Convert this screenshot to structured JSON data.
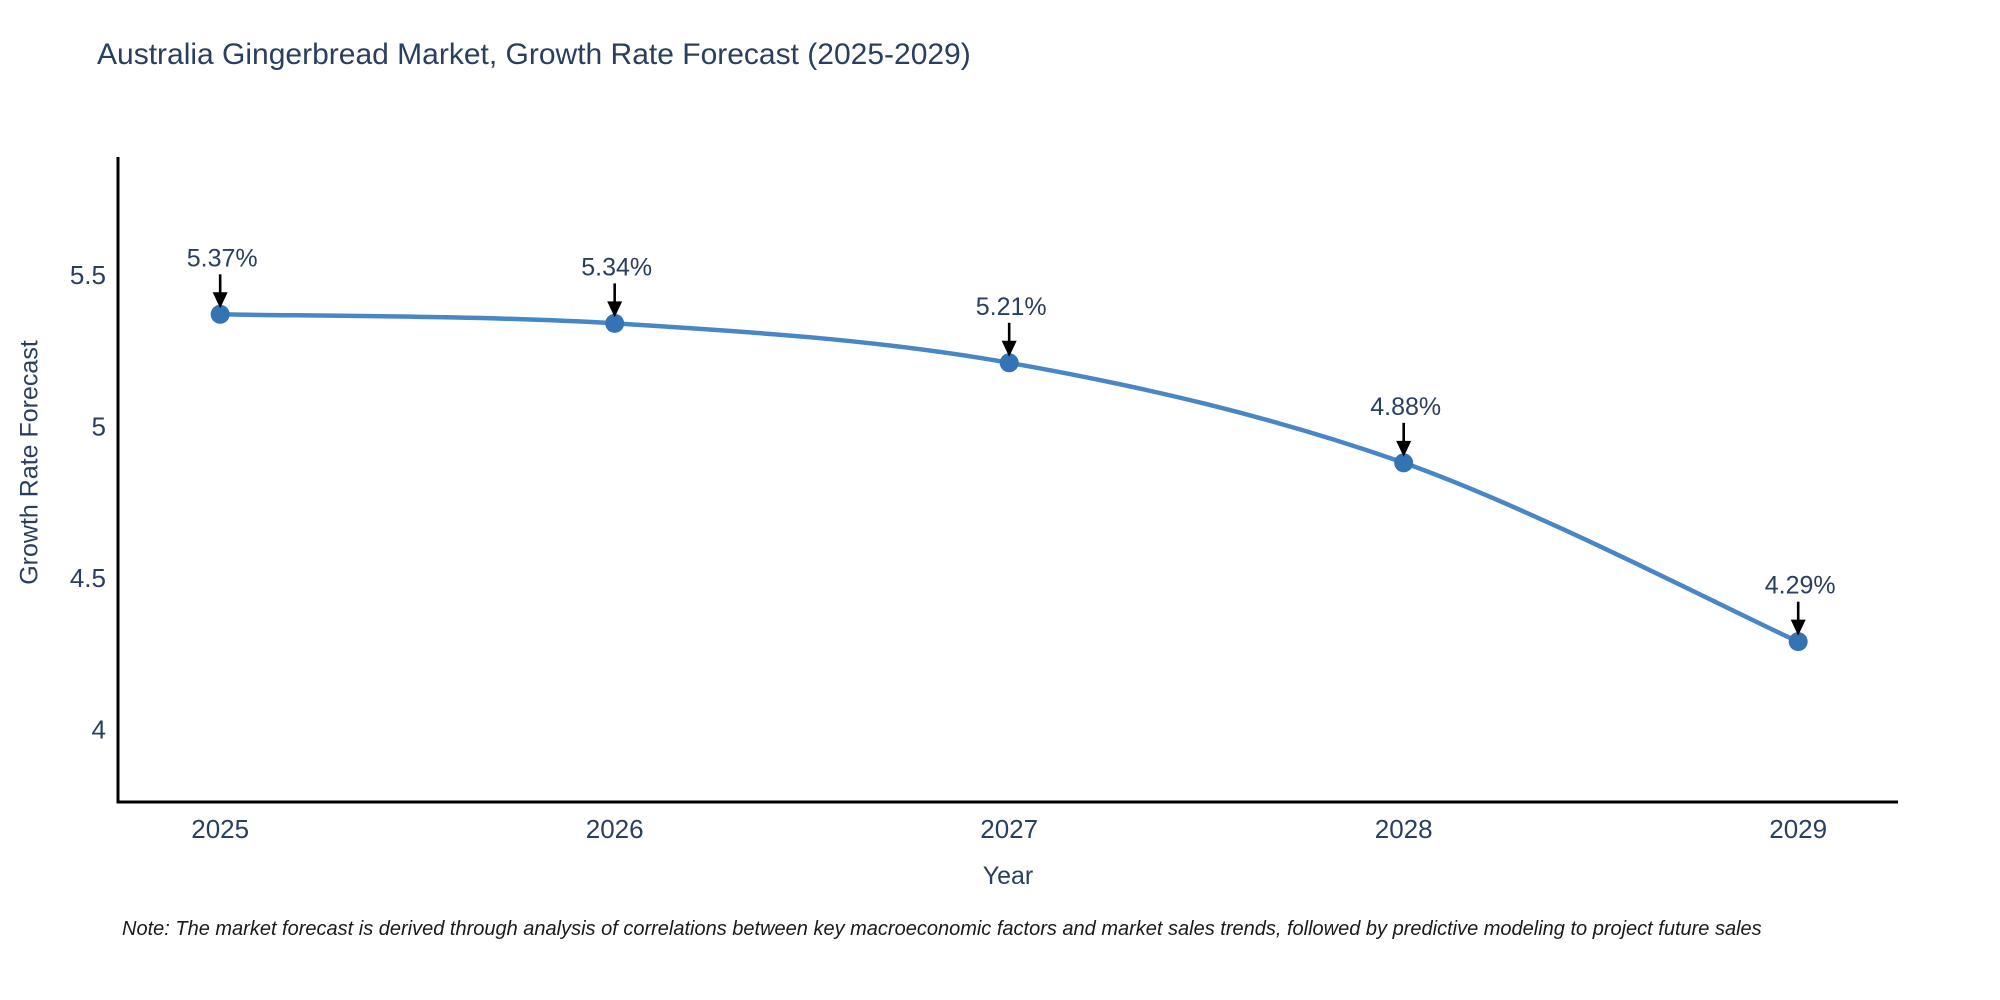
{
  "chart_data": {
    "type": "line",
    "title": "Australia Gingerbread Market, Growth Rate Forecast (2025-2029)",
    "xlabel": "Year",
    "ylabel": "Growth Rate Forecast",
    "x": [
      2025,
      2026,
      2027,
      2028,
      2029
    ],
    "series": [
      {
        "name": "Growth Rate Forecast",
        "values": [
          5.37,
          5.34,
          5.21,
          4.88,
          4.29
        ]
      }
    ],
    "point_labels": [
      "5.37%",
      "5.34%",
      "5.21%",
      "4.88%",
      "4.29%"
    ],
    "xticks": [
      "2025",
      "2026",
      "2027",
      "2028",
      "2029"
    ],
    "yticks": [
      "4",
      "4.5",
      "5",
      "5.5"
    ],
    "ytick_values": [
      4,
      4.5,
      5,
      5.5
    ],
    "xlim": [
      2024.741,
      2029.253
    ],
    "ylim": [
      3.761,
      5.889
    ],
    "line_shape": "spline",
    "grid": false,
    "legend_position": "none",
    "colors": {
      "line": "#4886c6",
      "marker": "#3473b4",
      "axis": "#000000",
      "text": "#2a3f5f",
      "annotation_arrow": "#000000"
    }
  },
  "note": {
    "text": "Note: The market forecast is derived through analysis of correlations between key macroeconomic factors and market sales trends, followed by predictive modeling to project future sales"
  }
}
